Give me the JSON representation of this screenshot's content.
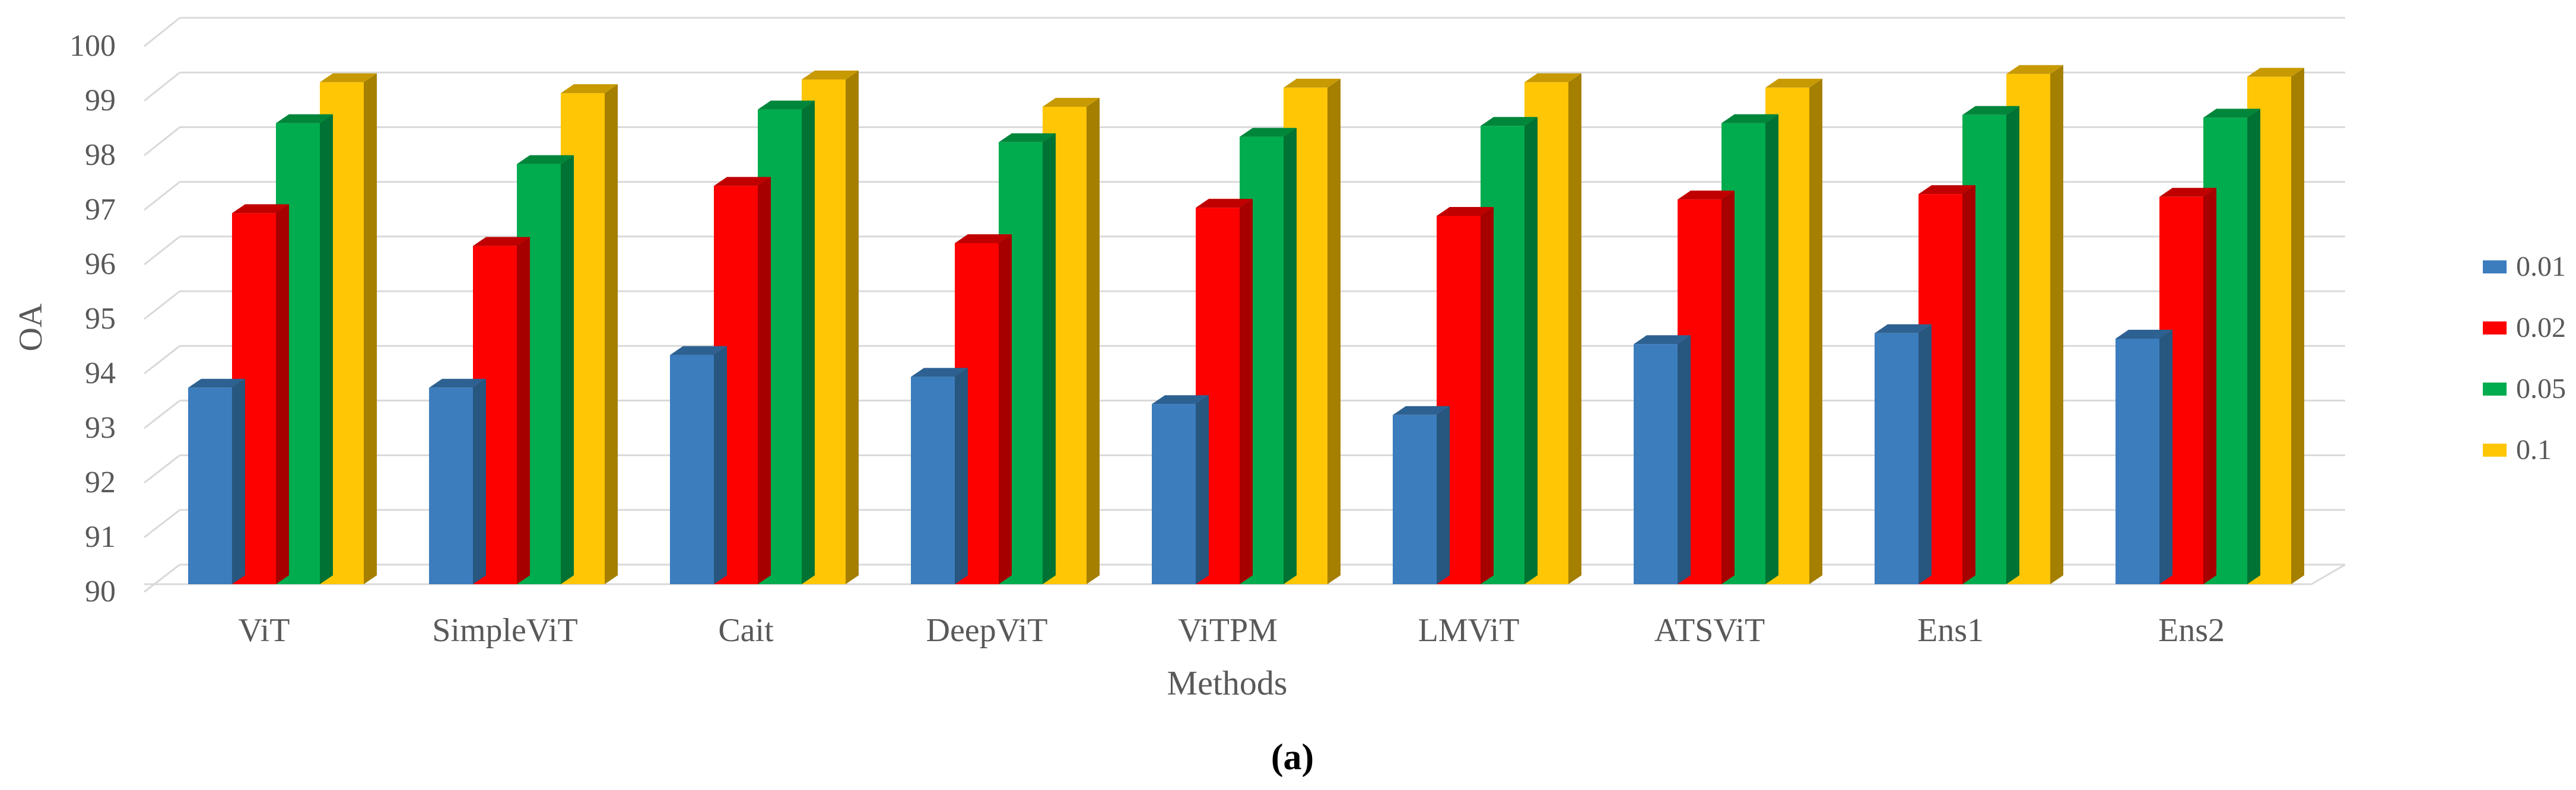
{
  "caption": "(a)",
  "chart_data": {
    "type": "bar",
    "projection": "3d-clustered-column",
    "title": "",
    "xlabel": "Methods",
    "ylabel": "OA",
    "ylim": [
      90,
      100
    ],
    "ytick_step": 1,
    "grid": true,
    "legend_position": "right",
    "y_tick_labels": [
      "100",
      "99",
      "98",
      "97",
      "96",
      "95",
      "94",
      "93",
      "92",
      "91",
      "90"
    ],
    "categories": [
      "ViT",
      "SimpleViT",
      "Cait",
      "DeepViT",
      "ViTPM",
      "LMViT",
      "ATSViT",
      "Ens1",
      "Ens2"
    ],
    "series": [
      {
        "name": "0.01",
        "color": "#3C7DBE",
        "top_color": "#2D6191",
        "side_color": "#27567F",
        "values": [
          93.6,
          93.6,
          94.2,
          93.8,
          93.3,
          93.1,
          94.4,
          94.6,
          94.5
        ]
      },
      {
        "name": "0.02",
        "color": "#FD0101",
        "top_color": "#C00000",
        "side_color": "#A60000",
        "values": [
          96.8,
          96.2,
          97.3,
          96.25,
          96.9,
          96.75,
          97.05,
          97.15,
          97.1
        ]
      },
      {
        "name": "0.05",
        "color": "#00AC4E",
        "top_color": "#00863B",
        "side_color": "#007233",
        "values": [
          98.45,
          97.7,
          98.7,
          98.1,
          98.2,
          98.4,
          98.45,
          98.6,
          98.55
        ]
      },
      {
        "name": "0.1",
        "color": "#FFC606",
        "top_color": "#C79A04",
        "side_color": "#A57F00",
        "values": [
          99.2,
          99.0,
          99.25,
          98.75,
          99.1,
          99.2,
          99.1,
          99.35,
          99.3
        ]
      }
    ],
    "colors": {
      "gridline": "#D9D9D9",
      "axis_text": "#595959",
      "background": "#FFFFFF"
    }
  }
}
